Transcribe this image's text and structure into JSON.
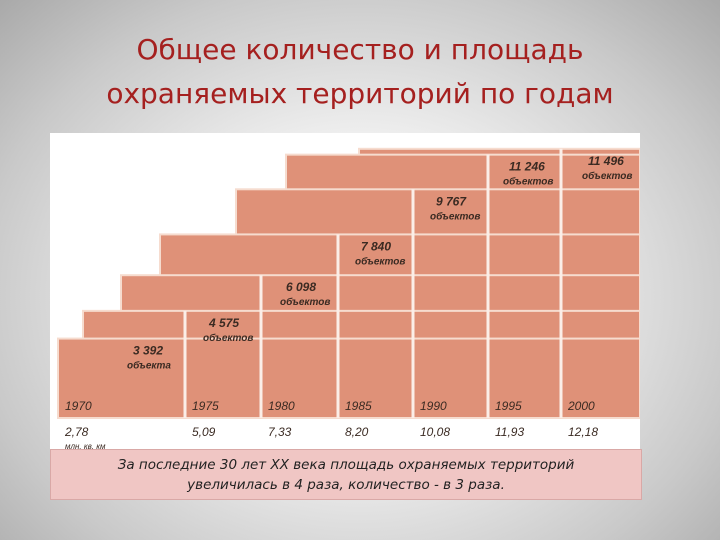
{
  "title_line1": "Общее количество и площадь",
  "title_line2": "охраняемых территорий по годам",
  "chart_data": {
    "type": "area",
    "categories": [
      "1970",
      "1975",
      "1980",
      "1985",
      "1990",
      "1995",
      "2000"
    ],
    "counts": [
      3392,
      4575,
      6098,
      7840,
      9767,
      11246,
      11496
    ],
    "count_labels": [
      "3 392",
      "4 575",
      "6 098",
      "7 840",
      "9 767",
      "11 246",
      "11 496"
    ],
    "count_units": [
      "объекта",
      "объектов",
      "объектов",
      "объектов",
      "объектов",
      "объектов",
      "объектов"
    ],
    "areas": [
      2.78,
      5.09,
      7.33,
      8.2,
      10.08,
      11.93,
      12.18
    ],
    "area_labels": [
      "2,78",
      "5,09",
      "7,33",
      "8,20",
      "10,08",
      "11,93",
      "12,18"
    ],
    "area_unit": "млн. кв. км",
    "fill_color": "#df9178",
    "edge_color": "#f6dccf"
  },
  "caption_line1": "За последние 30 лет XX века площадь охраняемых территорий",
  "caption_line2": "увеличилась в 4 раза, количество - в 3 раза."
}
